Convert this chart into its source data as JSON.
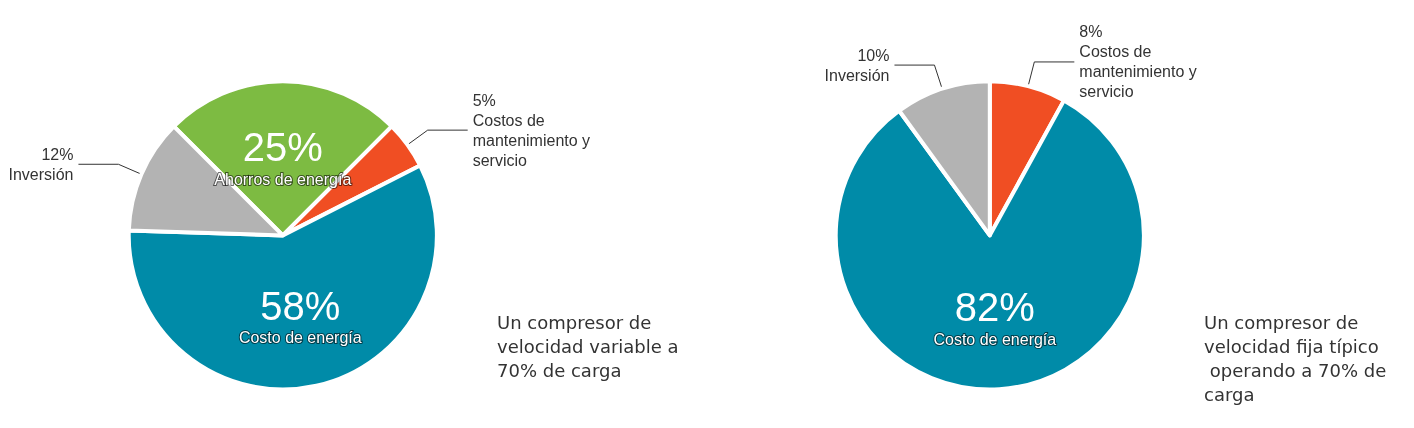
{
  "chart_data": [
    {
      "type": "pie",
      "categories": [
        "Ahorros de energía",
        "Costos de mantenimiento y servicio",
        "Costo de energía",
        "Inversión"
      ],
      "values": [
        25,
        5,
        58,
        12
      ],
      "value_labels": [
        "25%",
        "5%",
        "58%",
        "12%"
      ],
      "colors": [
        "#7dbb42",
        "#f04e23",
        "#008ba8",
        "#b3b3b3"
      ],
      "annotations": [
        "Un compresor de velocidad variable a 70% de carga"
      ]
    },
    {
      "type": "pie",
      "categories": [
        "Costos de mantenimiento y servicio",
        "Costo de energía",
        "Inversión"
      ],
      "values": [
        8,
        82,
        10
      ],
      "value_labels": [
        "8%",
        "82%",
        "10%"
      ],
      "colors": [
        "#f04e23",
        "#008ba8",
        "#b3b3b3"
      ],
      "annotations": [
        "Un compresor de velocidad fija típico operando a 70% de carga"
      ]
    }
  ]
}
